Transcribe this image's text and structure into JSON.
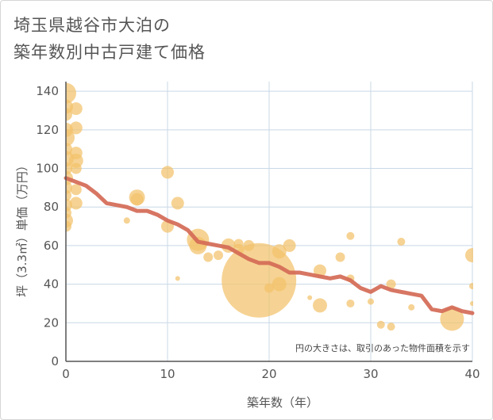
{
  "title_lines": [
    "埼玉県越谷市大泊の",
    "築年数別中古戸建て価格"
  ],
  "chart_data": {
    "type": "scatter",
    "xlabel": "築年数（年）",
    "ylabel": "坪（3.3㎡）単価（万円）",
    "xlim": [
      0,
      40
    ],
    "ylim": [
      0,
      145
    ],
    "x_ticks": [
      0,
      10,
      20,
      30,
      40
    ],
    "y_ticks": [
      0,
      20,
      40,
      60,
      80,
      100,
      120,
      140
    ],
    "grid": true,
    "annotation": "円の大きさは、取引のあった物件面積を示す",
    "colors": {
      "bubble": "#f2c26b",
      "line": "#d46a56",
      "grid": "#c9d8e6",
      "axis": "#555555"
    },
    "bubbles": [
      {
        "x": 0,
        "y": 139,
        "s": 13
      },
      {
        "x": 0,
        "y": 132,
        "s": 9
      },
      {
        "x": 0,
        "y": 128,
        "s": 8
      },
      {
        "x": 0,
        "y": 120,
        "s": 9
      },
      {
        "x": 0,
        "y": 116,
        "s": 11
      },
      {
        "x": 0,
        "y": 110,
        "s": 8
      },
      {
        "x": 0,
        "y": 105,
        "s": 10
      },
      {
        "x": 0,
        "y": 100,
        "s": 8
      },
      {
        "x": 0,
        "y": 95,
        "s": 9
      },
      {
        "x": 0,
        "y": 90,
        "s": 8
      },
      {
        "x": 0,
        "y": 86,
        "s": 7
      },
      {
        "x": 0,
        "y": 81,
        "s": 8
      },
      {
        "x": 0,
        "y": 77,
        "s": 7
      },
      {
        "x": 0,
        "y": 73,
        "s": 9
      },
      {
        "x": 0,
        "y": 70,
        "s": 7
      },
      {
        "x": 1,
        "y": 131,
        "s": 8
      },
      {
        "x": 1,
        "y": 121,
        "s": 8
      },
      {
        "x": 1,
        "y": 108,
        "s": 8
      },
      {
        "x": 1,
        "y": 104,
        "s": 9
      },
      {
        "x": 1,
        "y": 100,
        "s": 7
      },
      {
        "x": 1,
        "y": 89,
        "s": 7
      },
      {
        "x": 1,
        "y": 82,
        "s": 8
      },
      {
        "x": 6,
        "y": 73,
        "s": 4
      },
      {
        "x": 7,
        "y": 84,
        "s": 8
      },
      {
        "x": 7,
        "y": 85,
        "s": 10
      },
      {
        "x": 10,
        "y": 98,
        "s": 8
      },
      {
        "x": 10,
        "y": 70,
        "s": 8
      },
      {
        "x": 11,
        "y": 82,
        "s": 8
      },
      {
        "x": 11,
        "y": 43,
        "s": 3
      },
      {
        "x": 13,
        "y": 60,
        "s": 11
      },
      {
        "x": 13,
        "y": 63,
        "s": 14
      },
      {
        "x": 14,
        "y": 54,
        "s": 6
      },
      {
        "x": 15,
        "y": 55,
        "s": 6
      },
      {
        "x": 16,
        "y": 60,
        "s": 9
      },
      {
        "x": 17,
        "y": 58,
        "s": 7
      },
      {
        "x": 17,
        "y": 61,
        "s": 6
      },
      {
        "x": 18,
        "y": 60,
        "s": 7
      },
      {
        "x": 19,
        "y": 42,
        "s": 47
      },
      {
        "x": 20,
        "y": 38,
        "s": 6
      },
      {
        "x": 21,
        "y": 40,
        "s": 9
      },
      {
        "x": 21,
        "y": 57,
        "s": 9
      },
      {
        "x": 22,
        "y": 60,
        "s": 8
      },
      {
        "x": 24,
        "y": 33,
        "s": 3
      },
      {
        "x": 25,
        "y": 47,
        "s": 8
      },
      {
        "x": 25,
        "y": 29,
        "s": 9
      },
      {
        "x": 27,
        "y": 54,
        "s": 6
      },
      {
        "x": 28,
        "y": 65,
        "s": 5
      },
      {
        "x": 28,
        "y": 43,
        "s": 5
      },
      {
        "x": 28,
        "y": 30,
        "s": 5
      },
      {
        "x": 30,
        "y": 31,
        "s": 4
      },
      {
        "x": 31,
        "y": 19,
        "s": 5
      },
      {
        "x": 32,
        "y": 40,
        "s": 6
      },
      {
        "x": 32,
        "y": 18,
        "s": 5
      },
      {
        "x": 33,
        "y": 62,
        "s": 5
      },
      {
        "x": 34,
        "y": 28,
        "s": 4
      },
      {
        "x": 38,
        "y": 22,
        "s": 15
      },
      {
        "x": 40,
        "y": 55,
        "s": 9
      },
      {
        "x": 40,
        "y": 39,
        "s": 4
      },
      {
        "x": 40,
        "y": 30,
        "s": 3
      }
    ],
    "trend_line": {
      "x": [
        0,
        1,
        2,
        3,
        4,
        5,
        6,
        7,
        8,
        9,
        10,
        11,
        12,
        13,
        14,
        15,
        16,
        17,
        18,
        19,
        20,
        21,
        22,
        23,
        24,
        25,
        26,
        27,
        28,
        29,
        30,
        31,
        32,
        33,
        34,
        35,
        36,
        37,
        38,
        39,
        40
      ],
      "y": [
        95,
        93,
        91,
        87,
        82,
        81,
        80,
        78,
        78,
        76,
        73,
        71,
        68,
        62,
        61,
        60,
        59,
        56,
        53,
        51,
        51,
        49,
        46,
        46,
        45,
        44,
        43,
        44,
        42,
        38,
        36,
        39,
        37,
        36,
        35,
        34,
        27,
        26,
        28,
        26,
        25
      ]
    }
  }
}
